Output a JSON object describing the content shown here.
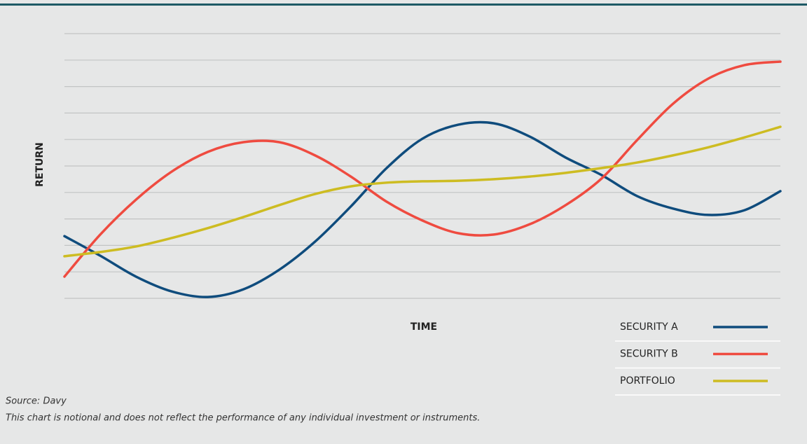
{
  "chart_data": {
    "type": "line",
    "y_label": "RETURN",
    "x_label": "TIME",
    "x": [
      0,
      1,
      2,
      3,
      4,
      5,
      6,
      7,
      8,
      9,
      10,
      11,
      12,
      13,
      14,
      15,
      16,
      17,
      18,
      19,
      20
    ],
    "xlim": [
      0,
      20
    ],
    "ylim": [
      0,
      10
    ],
    "yticks": [
      0,
      1,
      2,
      3,
      4,
      5,
      6,
      7,
      8,
      9,
      10
    ],
    "grid": true,
    "legend": "lower right",
    "series": [
      {
        "name": "SECURITY A",
        "color": "#0f4c7d",
        "values": [
          2.35,
          1.61,
          0.82,
          0.26,
          0.05,
          0.34,
          1.08,
          2.14,
          3.47,
          4.92,
          6.03,
          6.56,
          6.61,
          6.11,
          5.32,
          4.66,
          3.86,
          3.39,
          3.15,
          3.33,
          4.05
        ]
      },
      {
        "name": "SECURITY B",
        "color": "#ef4b40",
        "values": [
          0.82,
          2.41,
          3.73,
          4.79,
          5.53,
          5.9,
          5.9,
          5.4,
          4.6,
          3.65,
          2.94,
          2.46,
          2.41,
          2.8,
          3.52,
          4.52,
          5.98,
          7.35,
          8.31,
          8.81,
          8.94
        ]
      },
      {
        "name": "PORTFOLIO",
        "color": "#cdbc22",
        "values": [
          1.59,
          1.75,
          1.96,
          2.28,
          2.65,
          3.07,
          3.52,
          3.94,
          4.23,
          4.37,
          4.42,
          4.44,
          4.5,
          4.6,
          4.74,
          4.92,
          5.13,
          5.4,
          5.71,
          6.08,
          6.48
        ]
      }
    ],
    "source": "Source: Davy",
    "note": "This chart is notional and does not reflect the performance of any individual investment or instruments."
  }
}
